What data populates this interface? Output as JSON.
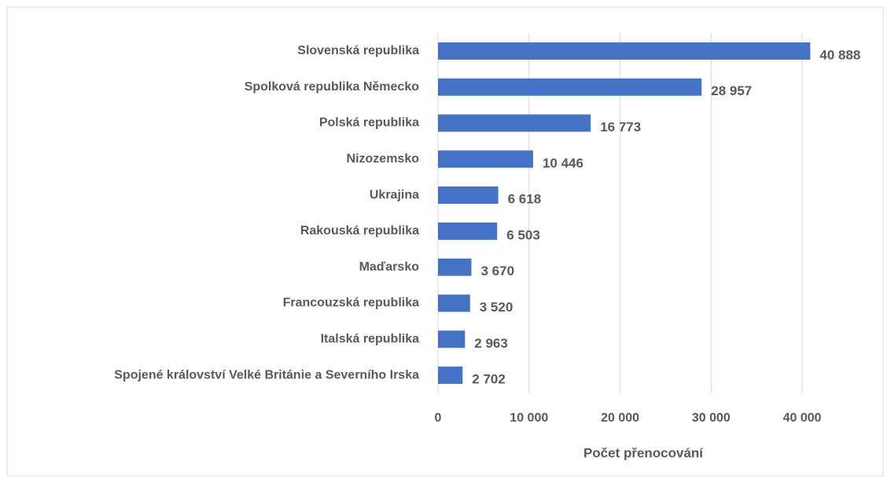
{
  "chart_data": {
    "type": "barh",
    "categories": [
      "Slovenská republika",
      "Spolková republika Německo",
      "Polská republika",
      "Nizozemsko",
      "Ukrajina",
      "Rakouská republika",
      "Maďarsko",
      "Francouzská republika",
      "Italská republika",
      "Spojené království Velké Británie a Severního Irska"
    ],
    "values": [
      40888,
      28957,
      16773,
      10446,
      6618,
      6503,
      3670,
      3520,
      2963,
      2702
    ],
    "value_labels": [
      "40 888",
      "28 957",
      "16 773",
      "10 446",
      "6 618",
      "6 503",
      "3 670",
      "3 520",
      "2 963",
      "2 702"
    ],
    "color": "#4472c4",
    "xlabel": "Počet přenocování",
    "xlim": [
      0,
      45000
    ],
    "xticks": [
      0,
      {
        "value": 10000,
        "label": "10 000"
      },
      {
        "value": 20000,
        "label": "20 000"
      },
      {
        "value": 30000,
        "label": "30 000"
      },
      {
        "value": 40000,
        "label": "40 000"
      }
    ],
    "grid": true
  }
}
